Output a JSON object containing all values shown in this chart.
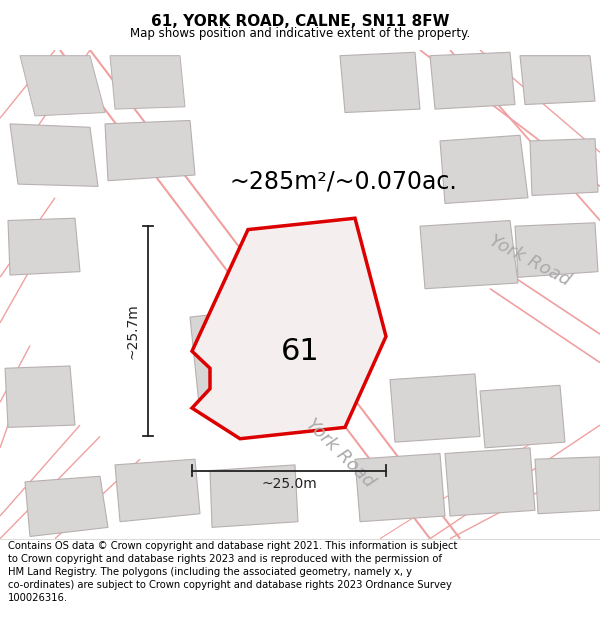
{
  "title": "61, YORK ROAD, CALNE, SN11 8FW",
  "subtitle": "Map shows position and indicative extent of the property.",
  "footer_lines": [
    "Contains OS data © Crown copyright and database right 2021. This information is subject",
    "to Crown copyright and database rights 2023 and is reproduced with the permission of",
    "HM Land Registry. The polygons (including the associated geometry, namely x, y",
    "co-ordinates) are subject to Crown copyright and database rights 2023 Ordnance Survey",
    "100026316."
  ],
  "area_label": "~285m²/~0.070ac.",
  "width_label": "~25.0m",
  "height_label": "~25.7m",
  "number_label": "61",
  "road_label_center": "York Road",
  "road_label_right": "York Road",
  "bg_color": "#ffffff",
  "map_bg": "#f7f2f2",
  "plot_edge_color": "#dd0000",
  "plot_fill_color": "#f5eeee",
  "neighbor_fill": "#d8d5d5",
  "neighbor_edge": "#b8b0b0",
  "road_line_color": "#f0a0a0",
  "road_text_color": "#aaaaaa",
  "dim_line_color": "#222222",
  "title_fontsize": 11,
  "subtitle_fontsize": 8.5,
  "footer_fontsize": 7.2,
  "area_fontsize": 17,
  "dim_fontsize": 10,
  "number_fontsize": 22,
  "road_fontsize": 13
}
